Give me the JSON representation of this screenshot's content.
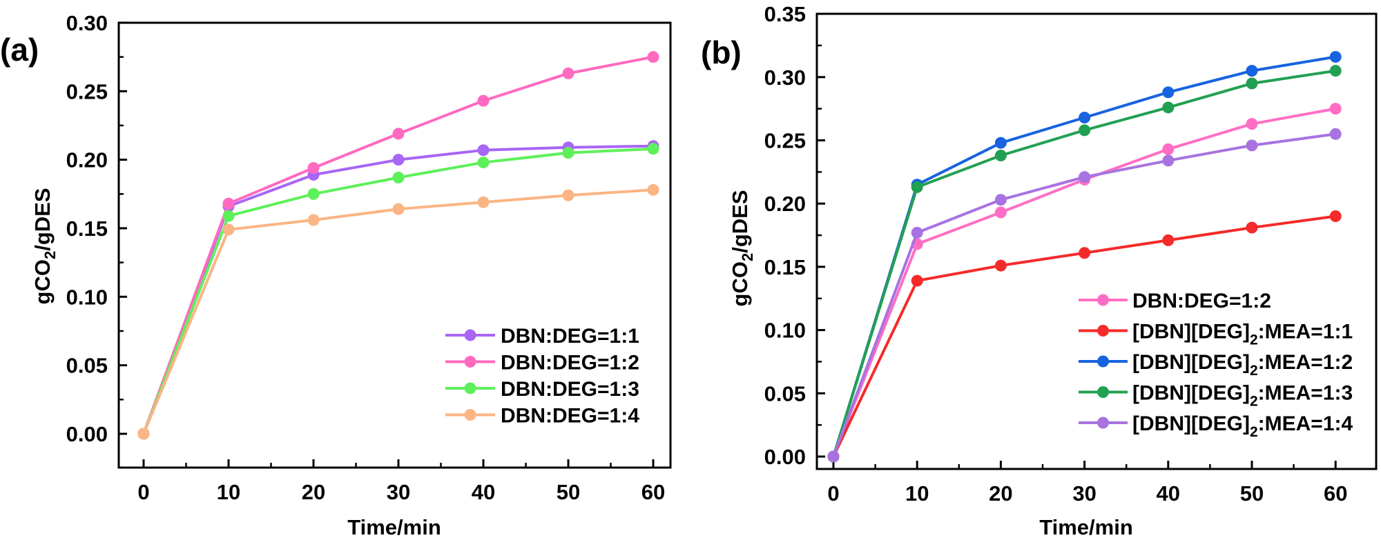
{
  "chart_data": [
    {
      "type": "line",
      "panel_label": "(a)",
      "title": "",
      "xlabel": "Time/min",
      "ylabel_parts": [
        "gCO",
        "2",
        "/gDES"
      ],
      "ylabel": "gCO2/gDES",
      "x": [
        0,
        10,
        20,
        30,
        40,
        50,
        60
      ],
      "xlim": [
        -3,
        62
      ],
      "ylim": [
        -0.025,
        0.3
      ],
      "xticks": [
        0,
        10,
        20,
        30,
        40,
        50,
        60
      ],
      "xtick_labels": [
        "0",
        "10",
        "20",
        "30",
        "40",
        "50",
        "60"
      ],
      "yticks": [
        0.0,
        0.05,
        0.1,
        0.15,
        0.2,
        0.25,
        0.3
      ],
      "ytick_labels": [
        "0.00",
        "0.05",
        "0.10",
        "0.15",
        "0.20",
        "0.25",
        "0.30"
      ],
      "grid": false,
      "legend_position": "bottom-right",
      "series": [
        {
          "name": "DBN:DEG=1:1",
          "color": "#a866f5",
          "values": [
            0.0,
            0.166,
            0.189,
            0.2,
            0.207,
            0.209,
            0.21
          ]
        },
        {
          "name": "DBN:DEG=1:2",
          "color": "#ff69c0",
          "values": [
            0.0,
            0.168,
            0.194,
            0.219,
            0.243,
            0.263,
            0.275
          ]
        },
        {
          "name": "DBN:DEG=1:3",
          "color": "#5ef05a",
          "values": [
            0.0,
            0.159,
            0.175,
            0.187,
            0.198,
            0.205,
            0.208
          ]
        },
        {
          "name": "DBN:DEG=1:4",
          "color": "#fbb484",
          "values": [
            0.0,
            0.149,
            0.156,
            0.164,
            0.169,
            0.174,
            0.178
          ]
        }
      ]
    },
    {
      "type": "line",
      "panel_label": "(b)",
      "title": "",
      "xlabel": "Time/min",
      "ylabel_parts": [
        "gCO",
        "2",
        "/gDES"
      ],
      "ylabel": "gCO2/gDES",
      "x": [
        0,
        10,
        20,
        30,
        40,
        50,
        60
      ],
      "xlim": [
        -2,
        64
      ],
      "ylim": [
        -0.01,
        0.35
      ],
      "xticks": [
        0,
        10,
        20,
        30,
        40,
        50,
        60
      ],
      "xtick_labels": [
        "0",
        "10",
        "20",
        "30",
        "40",
        "50",
        "60"
      ],
      "yticks": [
        0.0,
        0.05,
        0.1,
        0.15,
        0.2,
        0.25,
        0.3,
        0.35
      ],
      "ytick_labels": [
        "0.00",
        "0.05",
        "0.10",
        "0.15",
        "0.20",
        "0.25",
        "0.30",
        "0.35"
      ],
      "grid": false,
      "legend_position": "bottom-right",
      "series": [
        {
          "name": "DBN:DEG=1:2",
          "name_parts": [
            "DBN:DEG=1:2"
          ],
          "color": "#ff6ec4",
          "values": [
            0.0,
            0.168,
            0.193,
            0.219,
            0.243,
            0.263,
            0.275
          ]
        },
        {
          "name": "[DBN][DEG]2:MEA=1:1",
          "name_parts": [
            "[DBN][DEG]",
            "2",
            ":MEA=1:1"
          ],
          "color": "#f52a2a",
          "values": [
            0.0,
            0.139,
            0.151,
            0.161,
            0.171,
            0.181,
            0.19
          ]
        },
        {
          "name": "[DBN][DEG]2:MEA=1:2",
          "name_parts": [
            "[DBN][DEG]",
            "2",
            ":MEA=1:2"
          ],
          "color": "#1763e0",
          "values": [
            0.0,
            0.215,
            0.248,
            0.268,
            0.288,
            0.305,
            0.316
          ]
        },
        {
          "name": "[DBN][DEG]2:MEA=1:3",
          "name_parts": [
            "[DBN][DEG]",
            "2",
            ":MEA=1:3"
          ],
          "color": "#22a052",
          "values": [
            0.0,
            0.213,
            0.238,
            0.258,
            0.276,
            0.295,
            0.305
          ]
        },
        {
          "name": "[DBN][DEG]2:MEA=1:4",
          "name_parts": [
            "[DBN][DEG]",
            "2",
            ":MEA=1:4"
          ],
          "color": "#a873e0",
          "values": [
            0.0,
            0.177,
            0.203,
            0.221,
            0.234,
            0.246,
            0.255
          ]
        }
      ]
    }
  ]
}
